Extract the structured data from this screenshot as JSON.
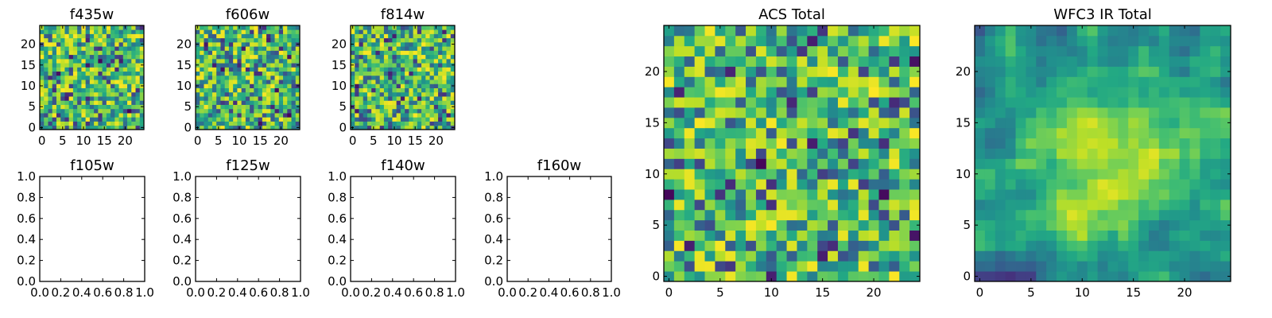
{
  "chart_data": [
    {
      "type": "heatmap",
      "title": "f435w",
      "ylim": [
        0,
        24
      ],
      "xlim": [
        0,
        24
      ],
      "xticks": [
        "0",
        "5",
        "10",
        "15",
        "20"
      ],
      "yticks": [
        "0",
        "5",
        "10",
        "15",
        "20"
      ],
      "grid_size": [
        25,
        25
      ],
      "colormap": "viridis",
      "has_data": true,
      "seed": 11
    },
    {
      "type": "heatmap",
      "title": "f606w",
      "ylim": [
        0,
        24
      ],
      "xlim": [
        0,
        24
      ],
      "xticks": [
        "0",
        "5",
        "10",
        "15",
        "20"
      ],
      "yticks": [
        "0",
        "5",
        "10",
        "15",
        "20"
      ],
      "grid_size": [
        25,
        25
      ],
      "colormap": "viridis",
      "has_data": true,
      "seed": 27
    },
    {
      "type": "heatmap",
      "title": "f814w",
      "ylim": [
        0,
        24
      ],
      "xlim": [
        0,
        24
      ],
      "xticks": [
        "0",
        "5",
        "10",
        "15",
        "20"
      ],
      "yticks": [
        "0",
        "5",
        "10",
        "15",
        "20"
      ],
      "grid_size": [
        25,
        25
      ],
      "colormap": "viridis",
      "has_data": true,
      "seed": 43
    },
    {
      "type": "heatmap",
      "title": "f105w",
      "xlim": [
        0,
        1
      ],
      "ylim": [
        0,
        1
      ],
      "xticks": [
        "0.0",
        "0.2",
        "0.4",
        "0.6",
        "0.8",
        "1.0"
      ],
      "yticks": [
        "0.0",
        "0.2",
        "0.4",
        "0.6",
        "0.8",
        "1.0"
      ],
      "has_data": false
    },
    {
      "type": "heatmap",
      "title": "f125w",
      "xlim": [
        0,
        1
      ],
      "ylim": [
        0,
        1
      ],
      "xticks": [
        "0.0",
        "0.2",
        "0.4",
        "0.6",
        "0.8",
        "1.0"
      ],
      "yticks": [
        "0.0",
        "0.2",
        "0.4",
        "0.6",
        "0.8",
        "1.0"
      ],
      "has_data": false
    },
    {
      "type": "heatmap",
      "title": "f140w",
      "xlim": [
        0,
        1
      ],
      "ylim": [
        0,
        1
      ],
      "xticks": [
        "0.0",
        "0.2",
        "0.4",
        "0.6",
        "0.8",
        "1.0"
      ],
      "yticks": [
        "0.0",
        "0.2",
        "0.4",
        "0.6",
        "0.8",
        "1.0"
      ],
      "has_data": false
    },
    {
      "type": "heatmap",
      "title": "f160w",
      "xlim": [
        0,
        1
      ],
      "ylim": [
        0,
        1
      ],
      "xticks": [
        "0.0",
        "0.2",
        "0.4",
        "0.6",
        "0.8",
        "1.0"
      ],
      "yticks": [
        "0.0",
        "0.2",
        "0.4",
        "0.6",
        "0.8",
        "1.0"
      ],
      "has_data": false
    },
    {
      "type": "heatmap",
      "title": "ACS Total",
      "xlim": [
        0,
        24
      ],
      "ylim": [
        0,
        24
      ],
      "xticks": [
        "0",
        "5",
        "10",
        "15",
        "20"
      ],
      "yticks": [
        "0",
        "5",
        "10",
        "15",
        "20"
      ],
      "grid_size": [
        25,
        25
      ],
      "colormap": "viridis",
      "has_data": true,
      "seed": 71
    },
    {
      "type": "heatmap",
      "title": "WFC3 IR Total",
      "xlim": [
        0,
        24
      ],
      "ylim": [
        0,
        24
      ],
      "xticks": [
        "0",
        "5",
        "10",
        "15",
        "20"
      ],
      "yticks": [
        "0",
        "5",
        "10",
        "15",
        "20"
      ],
      "grid_size": [
        25,
        25
      ],
      "colormap": "viridis",
      "has_data": true,
      "seed": 97,
      "smooth": true
    }
  ]
}
